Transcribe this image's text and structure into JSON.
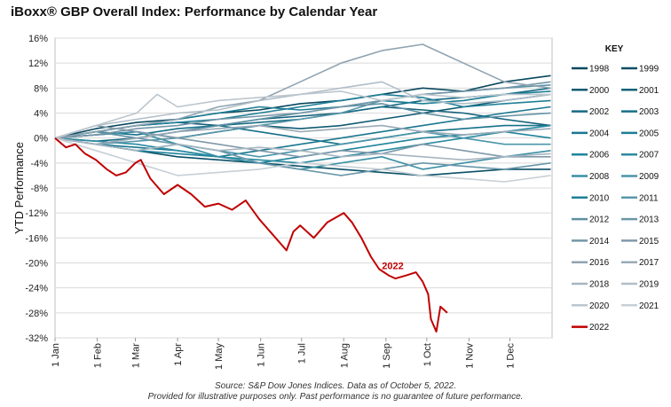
{
  "title": "iBoxx® GBP Overall Index: Performance by Calendar Year",
  "footnote": {
    "line1": "Source: S&P Dow Jones Indices.  Data as of October 5, 2022.",
    "line2": "Provided for illustrative purposes only.  Past performance is no guarantee of future performance."
  },
  "chart_data": {
    "type": "line",
    "title": "iBoxx® GBP Overall Index: Performance by Calendar Year",
    "xlabel": "",
    "ylabel": "YTD Performance",
    "x_ticks": [
      "1 Jan",
      "1 Feb",
      "1 Mar",
      "1 Apr",
      "1 May",
      "1 Jun",
      "1 Jul",
      "1 Aug",
      "1 Sep",
      "1 Oct",
      "1 Nov",
      "1 Dec"
    ],
    "y_ticks": [
      "16%",
      "12%",
      "8%",
      "4%",
      "0%",
      "-4%",
      "-8%",
      "-12%",
      "-16%",
      "-20%",
      "-24%",
      "-28%",
      "-32%"
    ],
    "ylim": [
      -32,
      16
    ],
    "x_range_days": [
      0,
      365
    ],
    "grid": true,
    "legend": {
      "title": "KEY",
      "position": "right",
      "entries": [
        "1998",
        "1999",
        "2000",
        "2001",
        "2002",
        "2003",
        "2004",
        "2005",
        "2006",
        "2007",
        "2008",
        "2009",
        "2010",
        "2011",
        "2012",
        "2013",
        "2014",
        "2015",
        "2016",
        "2017",
        "2018",
        "2019",
        "2020",
        "2021",
        "2022"
      ]
    },
    "annotation": "2022",
    "colors": {
      "1998": "#08485e",
      "1999": "#0b4f66",
      "2000": "#0f5a72",
      "2001": "#12607a",
      "2002": "#146a82",
      "2003": "#16708a",
      "2004": "#1a778f",
      "2005": "#1d7d95",
      "2006": "#20849b",
      "2007": "#2a8aa0",
      "2008": "#3a8fa4",
      "2009": "#4a95a8",
      "2010": "#1f7f96",
      "2011": "#5a97a9",
      "2012": "#5f90a3",
      "2013": "#6a97aa",
      "2014": "#7596a8",
      "2015": "#8099a9",
      "2016": "#8fa3b1",
      "2017": "#99aab7",
      "2018": "#a7b5c0",
      "2019": "#b2bec8",
      "2020": "#bcc6ce",
      "2021": "#c7d0d7",
      "2022": "#c00000"
    },
    "series": [
      {
        "name": "1998",
        "x": [
          0,
          30,
          60,
          90,
          120,
          150,
          180,
          210,
          240,
          270,
          300,
          330,
          364
        ],
        "y": [
          0,
          1.5,
          2.5,
          3,
          4,
          4.5,
          5.5,
          6,
          7,
          8,
          7.5,
          9,
          10
        ]
      },
      {
        "name": "1999",
        "x": [
          0,
          30,
          60,
          90,
          120,
          150,
          180,
          210,
          240,
          270,
          300,
          330,
          364
        ],
        "y": [
          0,
          -1,
          -2,
          -3,
          -3.5,
          -4,
          -4.5,
          -5,
          -5.5,
          -6,
          -5.5,
          -5,
          -5
        ]
      },
      {
        "name": "2000",
        "x": [
          0,
          30,
          60,
          90,
          120,
          150,
          180,
          210,
          240,
          270,
          300,
          330,
          364
        ],
        "y": [
          0,
          0.5,
          1,
          0,
          1,
          2,
          1.5,
          2,
          3,
          4,
          5,
          6,
          7
        ]
      },
      {
        "name": "2001",
        "x": [
          0,
          30,
          60,
          90,
          120,
          150,
          180,
          210,
          240,
          270,
          300,
          330,
          364
        ],
        "y": [
          0,
          1,
          2,
          2.5,
          2,
          3,
          3.5,
          4,
          5,
          4.5,
          4,
          3,
          2
        ]
      },
      {
        "name": "2002",
        "x": [
          0,
          30,
          60,
          90,
          120,
          150,
          180,
          210,
          240,
          270,
          300,
          330,
          364
        ],
        "y": [
          0,
          -0.5,
          0,
          1,
          2,
          2.5,
          3,
          4,
          5,
          6,
          6.5,
          7,
          8
        ]
      },
      {
        "name": "2003",
        "x": [
          0,
          30,
          60,
          90,
          120,
          150,
          180,
          210,
          240,
          270,
          300,
          330,
          364
        ],
        "y": [
          0,
          1,
          0.5,
          1.5,
          2,
          1,
          0,
          -1,
          0,
          1,
          1.5,
          2,
          2
        ]
      },
      {
        "name": "2004",
        "x": [
          0,
          30,
          60,
          90,
          120,
          150,
          180,
          210,
          240,
          270,
          300,
          330,
          364
        ],
        "y": [
          0,
          -1,
          -1.5,
          -2,
          -3,
          -2,
          -1,
          0,
          1,
          2,
          3,
          4,
          5
        ]
      },
      {
        "name": "2005",
        "x": [
          0,
          30,
          60,
          90,
          120,
          150,
          180,
          210,
          240,
          270,
          300,
          330,
          364
        ],
        "y": [
          0,
          1,
          2,
          3,
          4,
          5,
          4.5,
          5,
          6,
          5.5,
          6,
          7,
          7.5
        ]
      },
      {
        "name": "2006",
        "x": [
          0,
          30,
          60,
          90,
          120,
          150,
          180,
          210,
          240,
          270,
          300,
          330,
          364
        ],
        "y": [
          0,
          -1,
          -2,
          -2.5,
          -3,
          -4,
          -3,
          -2,
          -1,
          0,
          0.5,
          1,
          0
        ]
      },
      {
        "name": "2007",
        "x": [
          0,
          30,
          60,
          90,
          120,
          150,
          180,
          210,
          240,
          270,
          300,
          330,
          364
        ],
        "y": [
          0,
          -0.5,
          -1,
          -2,
          -3,
          -3.5,
          -4,
          -3,
          -2,
          -1,
          0,
          1,
          2
        ]
      },
      {
        "name": "2008",
        "x": [
          0,
          30,
          60,
          90,
          120,
          150,
          180,
          210,
          240,
          270,
          300,
          330,
          364
        ],
        "y": [
          0,
          0.5,
          1,
          -1,
          -3,
          -4,
          -5,
          -4,
          -3,
          -5,
          -4,
          -3,
          -2
        ]
      },
      {
        "name": "2009",
        "x": [
          0,
          30,
          60,
          90,
          120,
          150,
          180,
          210,
          240,
          270,
          300,
          330,
          364
        ],
        "y": [
          0,
          -1,
          -2,
          -1,
          -2,
          -3,
          -2,
          -1,
          0,
          1,
          0,
          -1,
          -1
        ]
      },
      {
        "name": "2010",
        "x": [
          0,
          30,
          60,
          90,
          120,
          150,
          180,
          210,
          240,
          270,
          300,
          330,
          364
        ],
        "y": [
          0,
          1,
          2,
          2.5,
          3,
          4,
          5,
          6,
          7,
          6.5,
          5,
          5.5,
          6
        ]
      },
      {
        "name": "2011",
        "x": [
          0,
          30,
          60,
          90,
          120,
          150,
          180,
          210,
          240,
          270,
          300,
          330,
          364
        ],
        "y": [
          0,
          -1,
          -0.5,
          0,
          1,
          2,
          3,
          4,
          6,
          7,
          7.5,
          8,
          8.5
        ]
      },
      {
        "name": "2012",
        "x": [
          0,
          30,
          60,
          90,
          120,
          150,
          180,
          210,
          240,
          270,
          300,
          330,
          364
        ],
        "y": [
          0,
          1,
          0,
          1,
          2,
          3,
          4,
          5,
          5.5,
          4,
          3,
          3.5,
          4
        ]
      },
      {
        "name": "2013",
        "x": [
          0,
          30,
          60,
          90,
          120,
          150,
          180,
          210,
          240,
          270,
          300,
          330,
          364
        ],
        "y": [
          0,
          -1,
          0,
          -1,
          -2,
          -4,
          -5,
          -6,
          -5,
          -4,
          -4.5,
          -5,
          -4
        ]
      },
      {
        "name": "2014",
        "x": [
          0,
          30,
          60,
          90,
          120,
          150,
          180,
          210,
          240,
          270,
          300,
          330,
          364
        ],
        "y": [
          0,
          0.5,
          1.5,
          2,
          3,
          3.5,
          4,
          5,
          6,
          7,
          7.5,
          8,
          9
        ]
      },
      {
        "name": "2015",
        "x": [
          0,
          30,
          60,
          90,
          120,
          150,
          180,
          210,
          240,
          270,
          300,
          330,
          364
        ],
        "y": [
          0,
          2,
          1,
          0,
          -1,
          -2,
          -3,
          -2,
          -2.5,
          -1,
          -2,
          -3,
          -3
        ]
      },
      {
        "name": "2016",
        "x": [
          0,
          30,
          60,
          90,
          120,
          150,
          180,
          210,
          240,
          270,
          300,
          330,
          364
        ],
        "y": [
          0,
          1,
          2,
          3,
          5,
          6,
          9,
          12,
          14,
          15,
          12,
          9,
          8
        ]
      },
      {
        "name": "2017",
        "x": [
          0,
          30,
          60,
          90,
          120,
          150,
          180,
          210,
          240,
          270,
          300,
          330,
          364
        ],
        "y": [
          0,
          -1,
          0,
          1,
          1.5,
          2,
          1,
          1.5,
          2,
          1,
          0.5,
          1,
          1.5
        ]
      },
      {
        "name": "2018",
        "x": [
          0,
          30,
          60,
          90,
          120,
          150,
          180,
          210,
          240,
          270,
          300,
          330,
          364
        ],
        "y": [
          0,
          -1,
          -2,
          -1,
          -2,
          -1.5,
          -2,
          -3,
          -2.5,
          -3,
          -3.5,
          -3,
          -2.5
        ]
      },
      {
        "name": "2019",
        "x": [
          0,
          30,
          60,
          90,
          120,
          150,
          180,
          210,
          240,
          270,
          300,
          330,
          364
        ],
        "y": [
          0,
          2,
          3,
          4,
          4.5,
          6,
          7,
          8,
          9,
          6,
          5.5,
          6,
          7
        ]
      },
      {
        "name": "2020",
        "x": [
          0,
          30,
          60,
          75,
          90,
          120,
          150,
          180,
          210,
          240,
          270,
          300,
          330,
          364
        ],
        "y": [
          0,
          2,
          4,
          7,
          5,
          6,
          6.5,
          7,
          7.5,
          6,
          7,
          6.5,
          7,
          7
        ]
      },
      {
        "name": "2021",
        "x": [
          0,
          30,
          60,
          90,
          120,
          150,
          180,
          210,
          240,
          270,
          300,
          330,
          364
        ],
        "y": [
          0,
          -2,
          -4,
          -6,
          -5.5,
          -5,
          -4,
          -4.5,
          -5,
          -6,
          -6.5,
          -7,
          -6
        ]
      },
      {
        "name": "2022",
        "x": [
          0,
          8,
          15,
          22,
          30,
          38,
          45,
          52,
          59,
          63,
          70,
          80,
          90,
          100,
          110,
          120,
          130,
          140,
          150,
          160,
          170,
          175,
          180,
          190,
          200,
          208,
          212,
          218,
          225,
          232,
          238,
          245,
          250,
          258,
          265,
          270,
          274,
          276,
          278,
          280,
          283,
          288
        ],
        "y": [
          0,
          -1.5,
          -1,
          -2.5,
          -3.5,
          -5,
          -6,
          -5.5,
          -4,
          -3.5,
          -6.5,
          -9,
          -7.5,
          -9,
          -11,
          -10.5,
          -11.5,
          -10,
          -13,
          -15.5,
          -18,
          -15,
          -14,
          -16,
          -13.5,
          -12.5,
          -12,
          -13.5,
          -16,
          -19,
          -21,
          -22,
          -22.5,
          -22,
          -21.5,
          -23,
          -25,
          -29,
          -30,
          -31,
          -27,
          -28
        ]
      }
    ]
  }
}
